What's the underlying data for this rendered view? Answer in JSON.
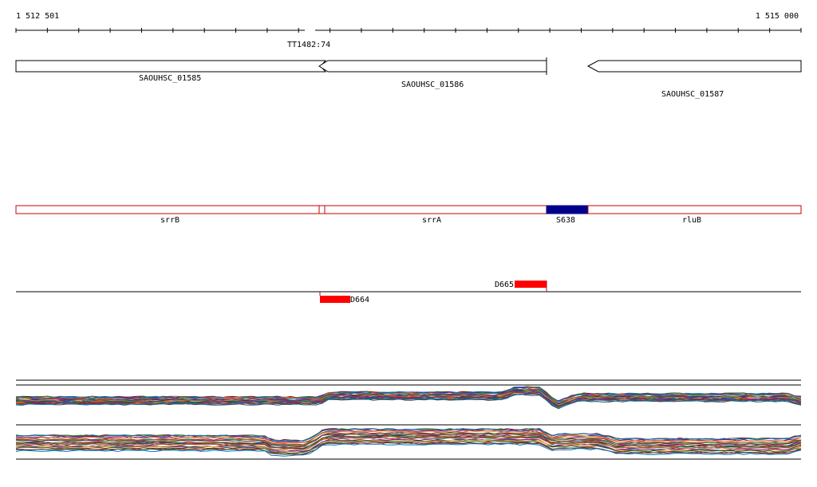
{
  "ruler": {
    "start_label": "1 512 501",
    "end_label": "1 515 000"
  },
  "terminator": {
    "label": "TT1482:74"
  },
  "genes": [
    {
      "label": "SAOUHSC_01585",
      "strand": "+"
    },
    {
      "label": "SAOUHSC_01586",
      "strand": "-"
    },
    {
      "label": "SAOUHSC_01587",
      "strand": "-"
    }
  ],
  "names_track": [
    {
      "label": "srrB"
    },
    {
      "label": "srrA"
    },
    {
      "label": "S638",
      "highlight": true,
      "color": "#00008b"
    },
    {
      "label": "rluB"
    }
  ],
  "features": [
    {
      "label": "D665",
      "color": "#ff0000",
      "strand": "+"
    },
    {
      "label": "D664",
      "color": "#ff0000",
      "strand": "-"
    }
  ],
  "colors": {
    "outline_red": "#cc0000",
    "highlight_blue": "#00008b",
    "feature_red": "#ff0000"
  }
}
